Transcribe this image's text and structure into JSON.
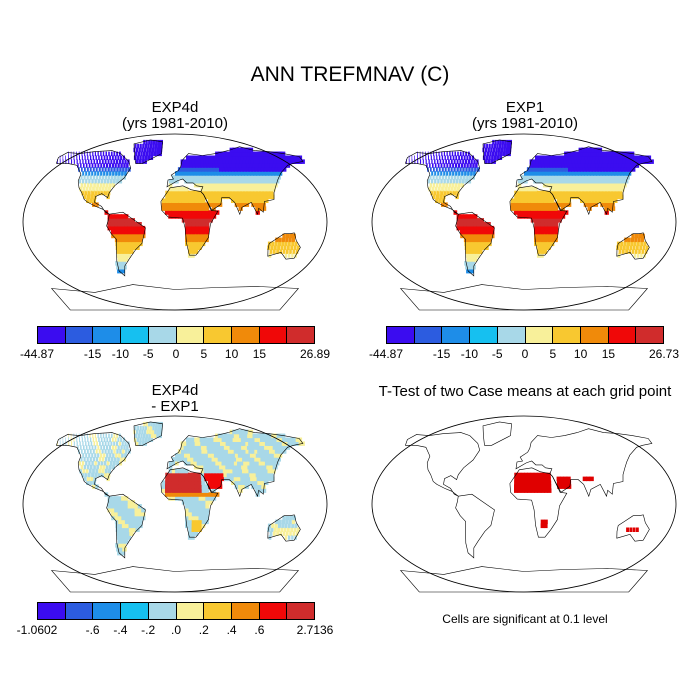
{
  "figure": {
    "title": "ANN TREFMNAV (C)",
    "significance_note": "Cells are significant at 0.1 level"
  },
  "chart_data": [
    {
      "type": "heatmap",
      "title": "EXP4d",
      "subtitle": "(yrs 1981-2010)",
      "projection": "Robinson world map",
      "colorbar": {
        "colors": [
          "#3b0cf0",
          "#2c5ce0",
          "#1e8de8",
          "#16c0f0",
          "#a8d8e8",
          "#f8f09a",
          "#f8c830",
          "#f08a0a",
          "#f00808",
          "#d02c2c"
        ],
        "tick_labels": [
          "-44.87",
          "-15",
          "-10",
          "-5",
          "0",
          "5",
          "10",
          "15",
          "26.89"
        ],
        "min": -44.87,
        "max": 26.89
      },
      "regions": [
        {
          "region": "Greenland / high Arctic",
          "level": "-44.87 to -15"
        },
        {
          "region": "Northern Canada / Siberia",
          "level": "-15 to -5"
        },
        {
          "region": "Mid-latitude N. America / Europe",
          "level": "-5 to 5"
        },
        {
          "region": "Southern USA / Mediterranean",
          "level": "5 to 15"
        },
        {
          "region": "Tropics (S. America, Africa, SE Asia, N. Australia)",
          "level": "15 to 26.89"
        }
      ]
    },
    {
      "type": "heatmap",
      "title": "EXP1",
      "subtitle": "(yrs 1981-2010)",
      "projection": "Robinson world map",
      "colorbar": {
        "colors": [
          "#3b0cf0",
          "#2c5ce0",
          "#1e8de8",
          "#16c0f0",
          "#a8d8e8",
          "#f8f09a",
          "#f8c830",
          "#f08a0a",
          "#f00808",
          "#d02c2c"
        ],
        "tick_labels": [
          "-44.87",
          "-15",
          "-10",
          "-5",
          "0",
          "5",
          "10",
          "15",
          "26.73"
        ],
        "min": -44.87,
        "max": 26.73
      }
    },
    {
      "type": "heatmap",
      "title": "EXP4d",
      "subtitle": "- EXP1",
      "projection": "Robinson world map",
      "colorbar": {
        "colors": [
          "#3b0cf0",
          "#2c5ce0",
          "#1e8de8",
          "#16c0f0",
          "#a8d8e8",
          "#f8f09a",
          "#f8c830",
          "#f08a0a",
          "#f00808",
          "#d02c2c"
        ],
        "tick_labels": [
          "-1.0602",
          "-.6",
          "-.4",
          "-.2",
          ".0",
          ".2",
          ".4",
          ".6",
          "2.7136"
        ],
        "min": -1.0602,
        "max": 2.7136
      },
      "regions": [
        {
          "region": "Sahara / Arabia",
          "level": ".6 to 2.7136"
        },
        {
          "region": "Southern Africa / Sahel",
          "level": ".2 to .6"
        },
        {
          "region": "Most other land",
          "level": "-.2 to .2"
        }
      ]
    },
    {
      "type": "heatmap",
      "title": "T-Test of two Case means at each grid point",
      "projection": "Robinson world map",
      "significant_color": "#e00000",
      "significant_regions": [
        "Sahara",
        "Arabia",
        "South Asia",
        "Southern Africa",
        "Australia",
        "West Africa coast"
      ]
    }
  ]
}
